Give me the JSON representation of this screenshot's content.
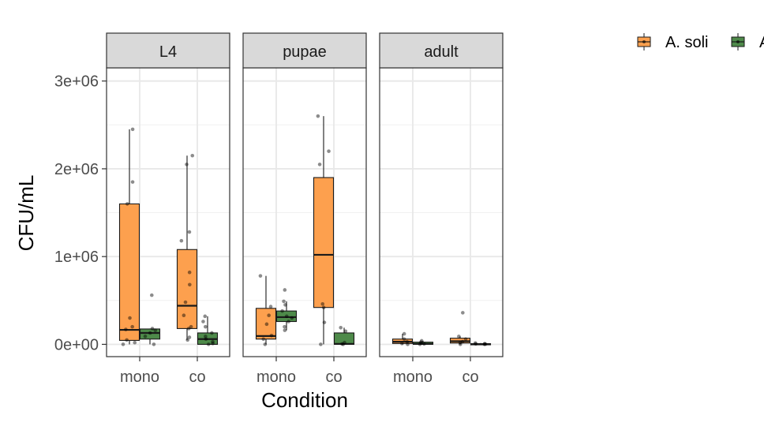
{
  "chart_data": {
    "type": "boxplot",
    "xlabel": "Condition",
    "ylabel": "CFU/mL",
    "ylim": [
      -140000,
      3150000
    ],
    "y_ticks": [
      {
        "value": 0,
        "label": "0e+00"
      },
      {
        "value": 1000000,
        "label": "1e+06"
      },
      {
        "value": 2000000,
        "label": "2e+06"
      },
      {
        "value": 3000000,
        "label": "3e+06"
      }
    ],
    "categories": [
      "mono",
      "co"
    ],
    "facets": [
      "L4",
      "pupae",
      "adult"
    ],
    "legend": {
      "position": "top-right",
      "entries": [
        {
          "label": "A. soli",
          "color": "#FDA04E"
        },
        {
          "label": "A",
          "color": "#4E8A4A"
        }
      ]
    },
    "series": [
      {
        "key": "asoli",
        "color": "#FDA04E",
        "boxes": [
          {
            "facet": "L4",
            "category": "mono",
            "min": 0,
            "q1": 45000,
            "median": 165000,
            "q3": 1600000,
            "max": 2450000,
            "points": [
              0,
              20000,
              50000,
              170000,
              200000,
              300000,
              1600000,
              1850000,
              2450000
            ]
          },
          {
            "facet": "L4",
            "category": "co",
            "min": 50000,
            "q1": 180000,
            "median": 440000,
            "q3": 1080000,
            "max": 2150000,
            "points": [
              50000,
              80000,
              180000,
              200000,
              330000,
              480000,
              680000,
              820000,
              1180000,
              1280000,
              2050000,
              2150000
            ]
          },
          {
            "facet": "pupae",
            "category": "mono",
            "min": 0,
            "q1": 60000,
            "median": 95000,
            "q3": 410000,
            "max": 780000,
            "points": [
              0,
              60000,
              100000,
              230000,
              330000,
              430000,
              780000
            ]
          },
          {
            "facet": "pupae",
            "category": "co",
            "min": 0,
            "q1": 420000,
            "median": 1020000,
            "q3": 1900000,
            "max": 2600000,
            "points": [
              0,
              250000,
              420000,
              460000,
              2050000,
              2200000,
              2600000
            ]
          },
          {
            "facet": "adult",
            "category": "mono",
            "min": 0,
            "q1": 10000,
            "median": 30000,
            "q3": 60000,
            "max": 120000,
            "points": [
              0,
              10000,
              30000,
              60000,
              120000
            ]
          },
          {
            "facet": "adult",
            "category": "co",
            "min": 0,
            "q1": 15000,
            "median": 35000,
            "q3": 70000,
            "max": 90000,
            "points": [
              0,
              20000,
              30000,
              60000,
              90000,
              360000
            ]
          }
        ]
      },
      {
        "key": "a2",
        "color": "#4E8A4A",
        "boxes": [
          {
            "facet": "L4",
            "category": "mono",
            "min": 0,
            "q1": 60000,
            "median": 130000,
            "q3": 175000,
            "max": 180000,
            "points": [
              0,
              90000,
              130000,
              160000,
              180000,
              560000
            ]
          },
          {
            "facet": "L4",
            "category": "co",
            "min": 0,
            "q1": 0,
            "median": 60000,
            "q3": 130000,
            "max": 320000,
            "points": [
              0,
              10000,
              30000,
              60000,
              90000,
              130000,
              200000,
              260000,
              320000
            ]
          },
          {
            "facet": "pupae",
            "category": "mono",
            "min": 160000,
            "q1": 260000,
            "median": 310000,
            "q3": 380000,
            "max": 490000,
            "points": [
              160000,
              200000,
              260000,
              300000,
              320000,
              380000,
              450000,
              490000,
              620000
            ]
          },
          {
            "facet": "pupae",
            "category": "co",
            "min": 0,
            "q1": 0,
            "median": 5000,
            "q3": 130000,
            "max": 190000,
            "points": [
              0,
              5000,
              20000,
              150000,
              190000
            ]
          },
          {
            "facet": "adult",
            "category": "mono",
            "min": 0,
            "q1": 0,
            "median": 5000,
            "q3": 25000,
            "max": 40000,
            "points": [
              0,
              5000,
              15000,
              25000,
              40000
            ]
          },
          {
            "facet": "adult",
            "category": "co",
            "min": 0,
            "q1": 0,
            "median": 2000,
            "q3": 8000,
            "max": 15000,
            "points": [
              0,
              2000,
              5000,
              8000,
              15000
            ]
          }
        ]
      }
    ]
  }
}
